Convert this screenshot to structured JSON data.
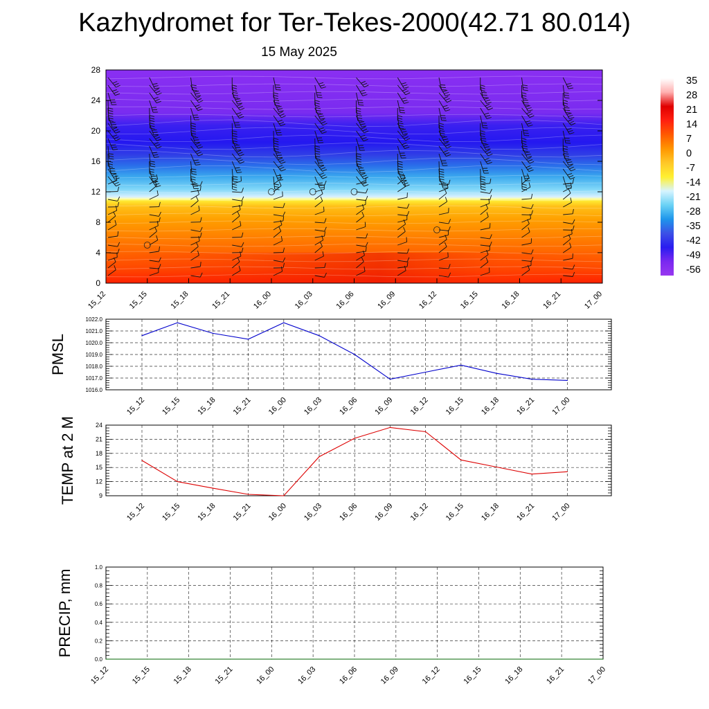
{
  "title": "Kazhydromet for Ter-Tekes-2000(42.71 80.014)",
  "subtitle": "15 May 2025",
  "chart_data": [
    {
      "type": "heatmap",
      "name": "temperature-profile",
      "title": "",
      "ylabel": "",
      "xlabel": "",
      "y_ticks": [
        0,
        4,
        8,
        12,
        16,
        20,
        24,
        28
      ],
      "ylim": [
        0,
        28
      ],
      "x_ticks": [
        "15_12",
        "15_15",
        "15_18",
        "15_21",
        "16_00",
        "16_03",
        "16_06",
        "16_09",
        "16_12",
        "16_15",
        "16_18",
        "16_21",
        "17_00"
      ],
      "colorbar": {
        "labels": [
          "35",
          "28",
          "21",
          "14",
          "7",
          "0",
          "-7",
          "-14",
          "-21",
          "-28",
          "-35",
          "-42",
          "-49",
          "-56"
        ],
        "colors": [
          "#ffffff",
          "#ffb0b0",
          "#e00000",
          "#ff2010",
          "#ff5a00",
          "#ff9600",
          "#ffc828",
          "#fff030",
          "#d8f4ff",
          "#6ad2f5",
          "#1e96eb",
          "#3c50e6",
          "#2a1cf0",
          "#7a28f0",
          "#9838f0"
        ]
      },
      "calm_markers": [
        [
          1,
          5
        ],
        [
          4,
          12
        ],
        [
          5,
          12
        ],
        [
          6,
          12
        ],
        [
          8,
          7
        ]
      ],
      "grid": false
    },
    {
      "type": "line",
      "name": "pmsl",
      "ylabel": "PMSL",
      "ylim": [
        1016.0,
        1022.0
      ],
      "y_ticks": [
        "1016.0",
        "1017.0",
        "1018.0",
        "1019.0",
        "1020.0",
        "1021.0",
        "1022.0"
      ],
      "categories": [
        "15_12",
        "15_15",
        "15_18",
        "15_21",
        "16_00",
        "16_03",
        "16_06",
        "16_09",
        "16_12",
        "16_15",
        "16_18",
        "16_21",
        "17_00"
      ],
      "values": [
        1020.6,
        1021.7,
        1020.8,
        1020.3,
        1021.7,
        1020.6,
        1019.0,
        1016.9,
        1017.5,
        1018.1,
        1017.4,
        1016.9,
        1016.8
      ],
      "color": "#0000cc",
      "grid": true
    },
    {
      "type": "line",
      "name": "temp-2m",
      "ylabel": "TEMP at 2 M",
      "ylim": [
        9,
        24
      ],
      "y_ticks": [
        "9",
        "12",
        "15",
        "18",
        "21",
        "24"
      ],
      "categories": [
        "15_12",
        "15_15",
        "15_18",
        "15_21",
        "16_00",
        "16_03",
        "16_06",
        "16_09",
        "16_12",
        "16_15",
        "16_18",
        "16_21",
        "17_00"
      ],
      "values": [
        16.5,
        12.0,
        10.6,
        9.3,
        9.0,
        17.3,
        21.2,
        23.5,
        22.6,
        16.6,
        15.1,
        13.6,
        14.1
      ],
      "color": "#dd0000",
      "grid": true
    },
    {
      "type": "line",
      "name": "precip",
      "ylabel": "PRECIP, mm",
      "ylim": [
        0.0,
        1.0
      ],
      "y_ticks": [
        "0.0",
        "0.2",
        "0.4",
        "0.6",
        "0.8",
        "1.0"
      ],
      "categories": [
        "15_12",
        "15_15",
        "15_18",
        "15_21",
        "16_00",
        "16_03",
        "16_06",
        "16_09",
        "16_12",
        "16_15",
        "16_18",
        "16_21",
        "17_00"
      ],
      "values": [
        0,
        0,
        0,
        0,
        0,
        0,
        0,
        0,
        0,
        0,
        0,
        0,
        0
      ],
      "color": "#006600",
      "grid": true
    }
  ]
}
